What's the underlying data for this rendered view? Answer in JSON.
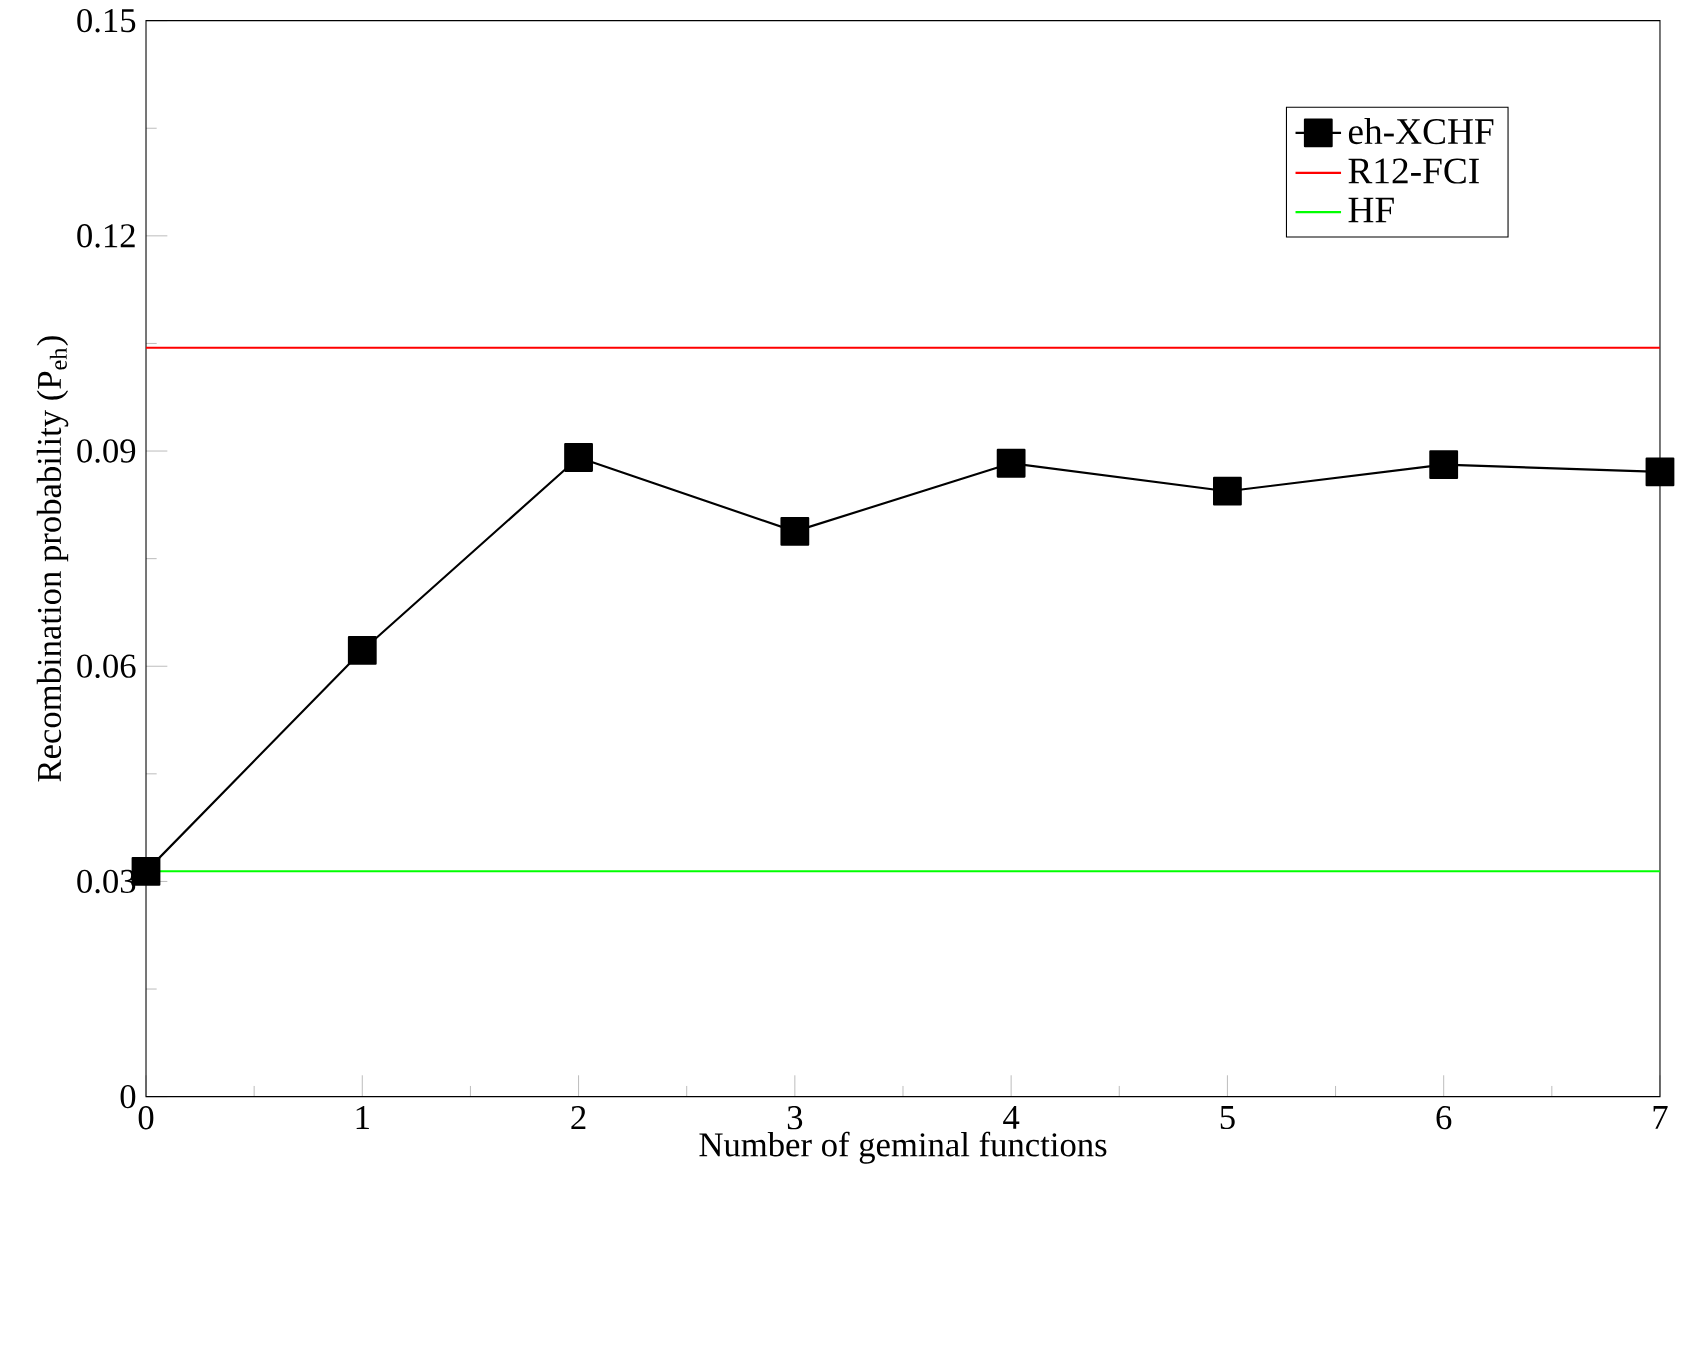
{
  "chart_data": {
    "type": "line",
    "xlabel": "Number of geminal functions",
    "ylabel": "Recombination probability (P$_{eh}$)",
    "xlim": [
      0,
      7
    ],
    "xticks": [
      0,
      1,
      2,
      3,
      4,
      5,
      6,
      7
    ],
    "ylim": [
      0,
      0.15
    ],
    "yticks": [
      0,
      0.03,
      0.06,
      0.09,
      0.12,
      0.15
    ],
    "grid": false,
    "legend": "top right",
    "series": [
      {
        "name": "eh-XCHF",
        "color": "#000000",
        "marker": "square",
        "x": [
          0,
          1,
          2,
          3,
          4,
          5,
          6,
          7
        ],
        "values": [
          0.0314,
          0.0622,
          0.0891,
          0.0788,
          0.0883,
          0.0844,
          0.0881,
          0.0871
        ]
      },
      {
        "name": "R12-FCI",
        "color": "#ff0000",
        "marker": "none",
        "x": [
          0,
          7
        ],
        "values": [
          0.1044,
          0.1044
        ]
      },
      {
        "name": "HF",
        "color": "#00ff00",
        "marker": "none",
        "x": [
          0,
          7
        ],
        "values": [
          0.0314,
          0.0314
        ]
      }
    ]
  }
}
